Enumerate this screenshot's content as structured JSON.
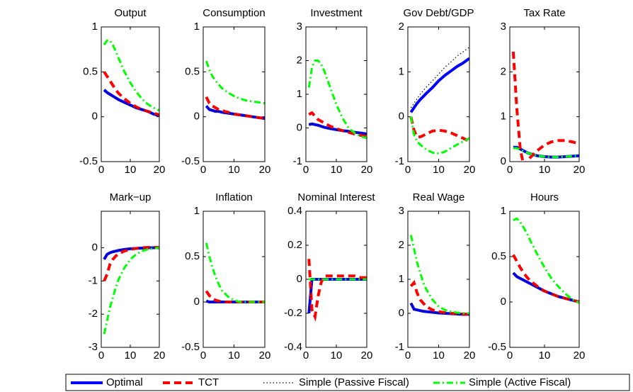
{
  "chart_data": [
    {
      "type": "line",
      "title": "Output",
      "x": [
        1,
        2,
        3,
        4,
        5,
        6,
        8,
        10,
        12,
        14,
        16,
        18,
        20
      ],
      "xlim": [
        0,
        20
      ],
      "xticks": [
        0,
        10,
        20
      ],
      "ylim": [
        -0.5,
        1
      ],
      "yticks": [
        -0.5,
        0,
        0.5,
        1
      ],
      "series": [
        {
          "name": "Optimal",
          "color": "#0000ff",
          "values": [
            0.3,
            0.27,
            0.25,
            0.23,
            0.21,
            0.19,
            0.16,
            0.13,
            0.1,
            0.08,
            0.06,
            0.03,
            0.01
          ]
        },
        {
          "name": "TCT",
          "color": "#ff0000",
          "values": [
            0.5,
            0.45,
            0.4,
            0.35,
            0.3,
            0.26,
            0.2,
            0.15,
            0.11,
            0.08,
            0.06,
            0.04,
            0.02
          ]
        },
        {
          "name": "Simple (Passive Fiscal)",
          "color": "#000000",
          "values": [
            0.28,
            0.26,
            0.24,
            0.22,
            0.2,
            0.18,
            0.15,
            0.12,
            0.1,
            0.08,
            0.06,
            0.03,
            0.01
          ]
        },
        {
          "name": "Simple (Active Fiscal)",
          "color": "#00ff00",
          "values": [
            0.8,
            0.85,
            0.85,
            0.8,
            0.73,
            0.65,
            0.5,
            0.38,
            0.28,
            0.2,
            0.14,
            0.1,
            0.07
          ]
        }
      ]
    },
    {
      "type": "line",
      "title": "Consumption",
      "x": [
        1,
        2,
        3,
        4,
        5,
        6,
        8,
        10,
        12,
        14,
        16,
        18,
        20
      ],
      "xlim": [
        0,
        20
      ],
      "xticks": [
        0,
        10,
        20
      ],
      "ylim": [
        -0.5,
        1
      ],
      "yticks": [
        -0.5,
        0,
        0.5,
        1
      ],
      "series": [
        {
          "name": "Optimal",
          "color": "#0000ff",
          "values": [
            0.12,
            0.08,
            0.07,
            0.06,
            0.06,
            0.05,
            0.04,
            0.03,
            0.02,
            0.01,
            0,
            -0.01,
            -0.02
          ]
        },
        {
          "name": "TCT",
          "color": "#ff0000",
          "values": [
            0.22,
            0.15,
            0.12,
            0.1,
            0.08,
            0.07,
            0.05,
            0.03,
            0.02,
            0.01,
            0,
            -0.01,
            -0.02
          ]
        },
        {
          "name": "Simple (Passive Fiscal)",
          "color": "#000000",
          "values": [
            0.12,
            0.08,
            0.07,
            0.06,
            0.06,
            0.05,
            0.04,
            0.03,
            0.02,
            0.01,
            0,
            -0.01,
            -0.02
          ]
        },
        {
          "name": "Simple (Active Fiscal)",
          "color": "#00ff00",
          "values": [
            0.62,
            0.52,
            0.45,
            0.4,
            0.36,
            0.32,
            0.27,
            0.23,
            0.2,
            0.18,
            0.17,
            0.16,
            0.15
          ]
        }
      ]
    },
    {
      "type": "line",
      "title": "Investment",
      "x": [
        1,
        2,
        3,
        4,
        5,
        6,
        8,
        10,
        12,
        14,
        16,
        18,
        20
      ],
      "xlim": [
        0,
        20
      ],
      "xticks": [
        0,
        10,
        20
      ],
      "ylim": [
        -1,
        3
      ],
      "yticks": [
        -1,
        0,
        1,
        2,
        3
      ],
      "series": [
        {
          "name": "Optimal",
          "color": "#0000ff",
          "values": [
            0.1,
            0.12,
            0.1,
            0.08,
            0.05,
            0.02,
            -0.02,
            -0.05,
            -0.08,
            -0.1,
            -0.13,
            -0.15,
            -0.18
          ]
        },
        {
          "name": "TCT",
          "color": "#ff0000",
          "values": [
            0.4,
            0.45,
            0.35,
            0.25,
            0.2,
            0.15,
            0.05,
            -0.02,
            -0.08,
            -0.13,
            -0.18,
            -0.22,
            -0.25
          ]
        },
        {
          "name": "Simple (Passive Fiscal)",
          "color": "#000000",
          "values": [
            0.1,
            0.12,
            0.1,
            0.08,
            0.05,
            0.02,
            -0.02,
            -0.05,
            -0.08,
            -0.1,
            -0.13,
            -0.15,
            -0.18
          ]
        },
        {
          "name": "Simple (Active Fiscal)",
          "color": "#00ff00",
          "values": [
            1.2,
            1.8,
            2.0,
            2.0,
            1.9,
            1.7,
            1.2,
            0.7,
            0.3,
            0,
            -0.15,
            -0.25,
            -0.3
          ]
        }
      ]
    },
    {
      "type": "line",
      "title": "Gov Debt/GDP",
      "x": [
        1,
        2,
        3,
        4,
        5,
        6,
        8,
        10,
        12,
        14,
        16,
        18,
        20
      ],
      "xlim": [
        0,
        20
      ],
      "xticks": [
        0,
        10,
        20
      ],
      "ylim": [
        -1,
        2
      ],
      "yticks": [
        -1,
        0,
        1,
        2
      ],
      "series": [
        {
          "name": "Optimal",
          "color": "#0000ff",
          "values": [
            0.1,
            0.2,
            0.3,
            0.38,
            0.45,
            0.52,
            0.65,
            0.8,
            0.92,
            1.02,
            1.12,
            1.2,
            1.3
          ]
        },
        {
          "name": "TCT",
          "color": "#ff0000",
          "values": [
            0,
            -0.3,
            -0.45,
            -0.45,
            -0.42,
            -0.38,
            -0.32,
            -0.3,
            -0.32,
            -0.36,
            -0.42,
            -0.48,
            -0.55
          ]
        },
        {
          "name": "Simple (Passive Fiscal)",
          "color": "#000000",
          "values": [
            0.2,
            0.3,
            0.4,
            0.5,
            0.58,
            0.66,
            0.8,
            0.95,
            1.1,
            1.22,
            1.35,
            1.45,
            1.55
          ]
        },
        {
          "name": "Simple (Active Fiscal)",
          "color": "#00ff00",
          "values": [
            0,
            -0.4,
            -0.55,
            -0.62,
            -0.68,
            -0.73,
            -0.8,
            -0.82,
            -0.78,
            -0.7,
            -0.62,
            -0.55,
            -0.48
          ]
        }
      ]
    },
    {
      "type": "line",
      "title": "Tax Rate",
      "x": [
        1,
        2,
        3,
        4,
        5,
        6,
        8,
        10,
        12,
        14,
        16,
        18,
        20
      ],
      "xlim": [
        0,
        20
      ],
      "xticks": [
        0,
        10,
        20
      ],
      "ylim": [
        0,
        3
      ],
      "yticks": [
        0,
        1,
        2,
        3
      ],
      "series": [
        {
          "name": "Optimal",
          "color": "#0000ff",
          "values": [
            0.32,
            0.32,
            0.28,
            0.24,
            0.2,
            0.17,
            0.13,
            0.11,
            0.1,
            0.1,
            0.11,
            0.12,
            0.13
          ]
        },
        {
          "name": "TCT",
          "color": "#ff0000",
          "values": [
            2.45,
            1.2,
            0.3,
            -0.1,
            0,
            0.1,
            0.25,
            0.37,
            0.44,
            0.47,
            0.47,
            0.44,
            0.4
          ]
        },
        {
          "name": "Simple (Passive Fiscal)",
          "color": "#000000",
          "values": [
            0.3,
            0.3,
            0.27,
            0.23,
            0.2,
            0.17,
            0.13,
            0.11,
            0.1,
            0.1,
            0.11,
            0.12,
            0.13
          ]
        },
        {
          "name": "Simple (Active Fiscal)",
          "color": "#00ff00",
          "values": [
            0.3,
            0.3,
            0.27,
            0.23,
            0.2,
            0.17,
            0.13,
            0.11,
            0.1,
            0.1,
            0.11,
            0.12,
            0.13
          ]
        }
      ]
    },
    {
      "type": "line",
      "title": "Mark−up",
      "x": [
        1,
        2,
        3,
        4,
        5,
        6,
        8,
        10,
        12,
        14,
        16,
        18,
        20
      ],
      "xlim": [
        0,
        20
      ],
      "xticks": [
        0,
        10,
        20
      ],
      "ylim": [
        -3,
        1.1
      ],
      "yticks": [
        -3,
        -2,
        -1,
        0
      ],
      "series": [
        {
          "name": "Optimal",
          "color": "#0000ff",
          "values": [
            -0.35,
            -0.2,
            -0.15,
            -0.12,
            -0.1,
            -0.08,
            -0.05,
            -0.03,
            -0.02,
            -0.01,
            0,
            0,
            0
          ]
        },
        {
          "name": "TCT",
          "color": "#ff0000",
          "values": [
            -1.0,
            -0.8,
            -0.5,
            -0.35,
            -0.25,
            -0.18,
            -0.1,
            -0.05,
            -0.02,
            0,
            0.01,
            0.01,
            0.01
          ]
        },
        {
          "name": "Simple (Passive Fiscal)",
          "color": "#000000",
          "values": [
            -0.35,
            -0.2,
            -0.15,
            -0.12,
            -0.1,
            -0.08,
            -0.05,
            -0.03,
            -0.02,
            -0.01,
            0,
            0,
            0
          ]
        },
        {
          "name": "Simple (Active Fiscal)",
          "color": "#00ff00",
          "values": [
            -2.6,
            -2.2,
            -1.8,
            -1.5,
            -1.2,
            -0.95,
            -0.6,
            -0.35,
            -0.2,
            -0.1,
            -0.05,
            -0.02,
            0
          ]
        }
      ]
    },
    {
      "type": "line",
      "title": "Inflation",
      "x": [
        1,
        2,
        3,
        4,
        5,
        6,
        8,
        10,
        12,
        14,
        16,
        18,
        20
      ],
      "xlim": [
        0,
        20
      ],
      "xticks": [
        0,
        10,
        20
      ],
      "ylim": [
        -0.5,
        1
      ],
      "yticks": [
        -0.5,
        0,
        0.5,
        1
      ],
      "series": [
        {
          "name": "Optimal",
          "color": "#0000ff",
          "values": [
            0.01,
            0,
            0,
            0,
            0,
            0,
            0,
            0,
            0,
            0,
            0,
            0,
            0
          ]
        },
        {
          "name": "TCT",
          "color": "#ff0000",
          "values": [
            0.12,
            0.07,
            0.04,
            0.02,
            0.01,
            0,
            0,
            0,
            0,
            0,
            0,
            0,
            0
          ]
        },
        {
          "name": "Simple (Passive Fiscal)",
          "color": "#000000",
          "values": [
            0.01,
            0,
            0,
            0,
            0,
            0,
            0,
            0,
            0,
            0,
            0,
            0,
            0
          ]
        },
        {
          "name": "Simple (Active Fiscal)",
          "color": "#00ff00",
          "values": [
            0.65,
            0.5,
            0.38,
            0.28,
            0.2,
            0.13,
            0.06,
            0.02,
            0,
            0,
            0,
            0,
            0
          ]
        }
      ]
    },
    {
      "type": "line",
      "title": "Nominal Interest",
      "x": [
        1,
        2,
        3,
        4,
        5,
        6,
        8,
        10,
        12,
        14,
        16,
        18,
        20
      ],
      "xlim": [
        0,
        20
      ],
      "xticks": [
        0,
        10,
        20
      ],
      "ylim": [
        -0.4,
        0.4
      ],
      "yticks": [
        -0.4,
        -0.2,
        0,
        0.2,
        0.4
      ],
      "series": [
        {
          "name": "Optimal",
          "color": "#0000ff",
          "values": [
            -0.2,
            0,
            0,
            0,
            0,
            0,
            0,
            0,
            0,
            0,
            0,
            0,
            0
          ]
        },
        {
          "name": "TCT",
          "color": "#ff0000",
          "values": [
            0.12,
            -0.18,
            -0.22,
            -0.1,
            -0.02,
            0.02,
            0.02,
            0.02,
            0.02,
            0.02,
            0.02,
            0.01,
            0.01
          ]
        },
        {
          "name": "Simple (Passive Fiscal)",
          "color": "#000000",
          "values": [
            -0.2,
            0,
            0,
            0,
            0,
            0,
            0,
            0,
            0,
            0,
            0,
            0,
            0
          ]
        },
        {
          "name": "Simple (Active Fiscal)",
          "color": "#00ff00",
          "values": [
            0,
            0,
            0,
            0,
            0,
            0,
            0,
            0,
            0,
            0,
            0,
            0,
            0
          ]
        }
      ]
    },
    {
      "type": "line",
      "title": "Real Wage",
      "x": [
        1,
        2,
        3,
        4,
        5,
        6,
        8,
        10,
        12,
        14,
        16,
        18,
        20
      ],
      "xlim": [
        0,
        20
      ],
      "xticks": [
        0,
        10,
        20
      ],
      "ylim": [
        -1,
        3
      ],
      "yticks": [
        -1,
        0,
        1,
        2,
        3
      ],
      "series": [
        {
          "name": "Optimal",
          "color": "#0000ff",
          "values": [
            0.3,
            0.12,
            0.1,
            0.08,
            0.06,
            0.05,
            0.03,
            0.01,
            0,
            -0.01,
            -0.02,
            -0.03,
            -0.03
          ]
        },
        {
          "name": "TCT",
          "color": "#ff0000",
          "values": [
            0.8,
            0.9,
            0.6,
            0.4,
            0.3,
            0.2,
            0.1,
            0.05,
            0.02,
            0,
            -0.01,
            -0.02,
            -0.03
          ]
        },
        {
          "name": "Simple (Passive Fiscal)",
          "color": "#000000",
          "values": [
            0.3,
            0.12,
            0.1,
            0.08,
            0.06,
            0.05,
            0.03,
            0.01,
            0,
            -0.01,
            -0.02,
            -0.03,
            -0.03
          ]
        },
        {
          "name": "Simple (Active Fiscal)",
          "color": "#00ff00",
          "values": [
            2.3,
            1.9,
            1.5,
            1.2,
            0.9,
            0.7,
            0.4,
            0.2,
            0.1,
            0.05,
            0.02,
            0,
            0
          ]
        }
      ]
    },
    {
      "type": "line",
      "title": "Hours",
      "x": [
        1,
        2,
        3,
        4,
        5,
        6,
        8,
        10,
        12,
        14,
        16,
        18,
        20
      ],
      "xlim": [
        0,
        20
      ],
      "xticks": [
        0,
        10,
        20
      ],
      "ylim": [
        -0.5,
        1
      ],
      "yticks": [
        -0.5,
        0,
        0.5,
        1
      ],
      "series": [
        {
          "name": "Optimal",
          "color": "#0000ff",
          "values": [
            0.32,
            0.28,
            0.26,
            0.24,
            0.22,
            0.2,
            0.16,
            0.12,
            0.09,
            0.06,
            0.04,
            0.02,
            0
          ]
        },
        {
          "name": "TCT",
          "color": "#ff0000",
          "values": [
            0.52,
            0.45,
            0.38,
            0.32,
            0.27,
            0.23,
            0.17,
            0.12,
            0.09,
            0.06,
            0.04,
            0.02,
            0
          ]
        },
        {
          "name": "Simple (Passive Fiscal)",
          "color": "#000000",
          "values": [
            0.32,
            0.28,
            0.26,
            0.24,
            0.22,
            0.2,
            0.16,
            0.12,
            0.09,
            0.06,
            0.04,
            0.02,
            0
          ]
        },
        {
          "name": "Simple (Active Fiscal)",
          "color": "#00ff00",
          "values": [
            0.9,
            0.92,
            0.88,
            0.82,
            0.75,
            0.67,
            0.52,
            0.38,
            0.26,
            0.17,
            0.09,
            0.03,
            -0.01
          ]
        }
      ]
    }
  ]
}
